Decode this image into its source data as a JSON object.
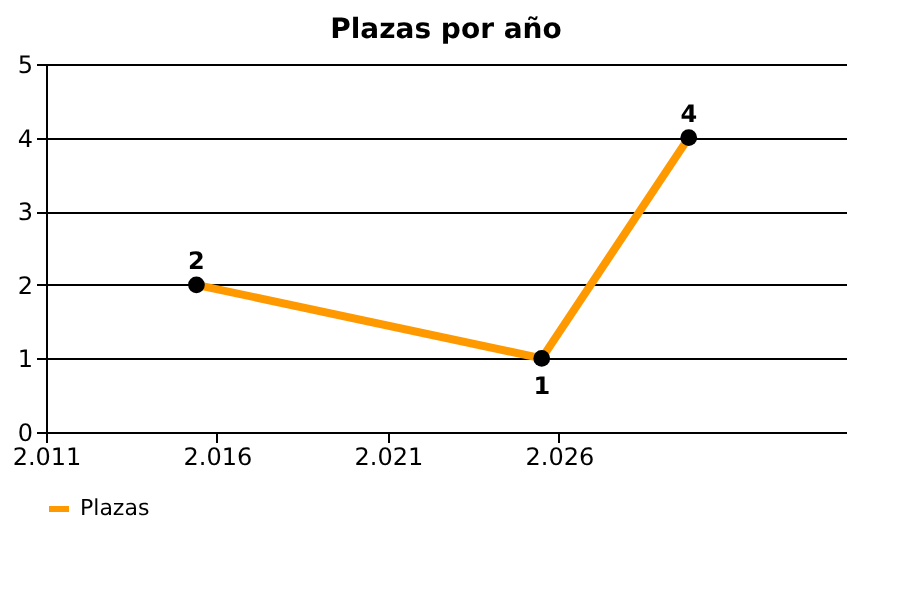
{
  "chart_data": {
    "type": "line",
    "title": "Plazas por año",
    "x": [
      2015.4,
      2025.5,
      2029.8
    ],
    "series": [
      {
        "name": "Plazas",
        "color": "#ff9900",
        "values": [
          2,
          1,
          4
        ]
      }
    ],
    "xlim": [
      2011,
      2034.4
    ],
    "xticks": [
      {
        "value": 2011,
        "label": "2.011"
      },
      {
        "value": 2016,
        "label": "2.016"
      },
      {
        "value": 2021,
        "label": "2.021"
      },
      {
        "value": 2026,
        "label": "2.026"
      }
    ],
    "ylim": [
      0,
      5
    ],
    "yticks": [
      0,
      1,
      2,
      3,
      4,
      5
    ],
    "grid": "y",
    "legend": "bottom left",
    "marker": "circle",
    "line_style": "solid",
    "data_labels": true
  }
}
